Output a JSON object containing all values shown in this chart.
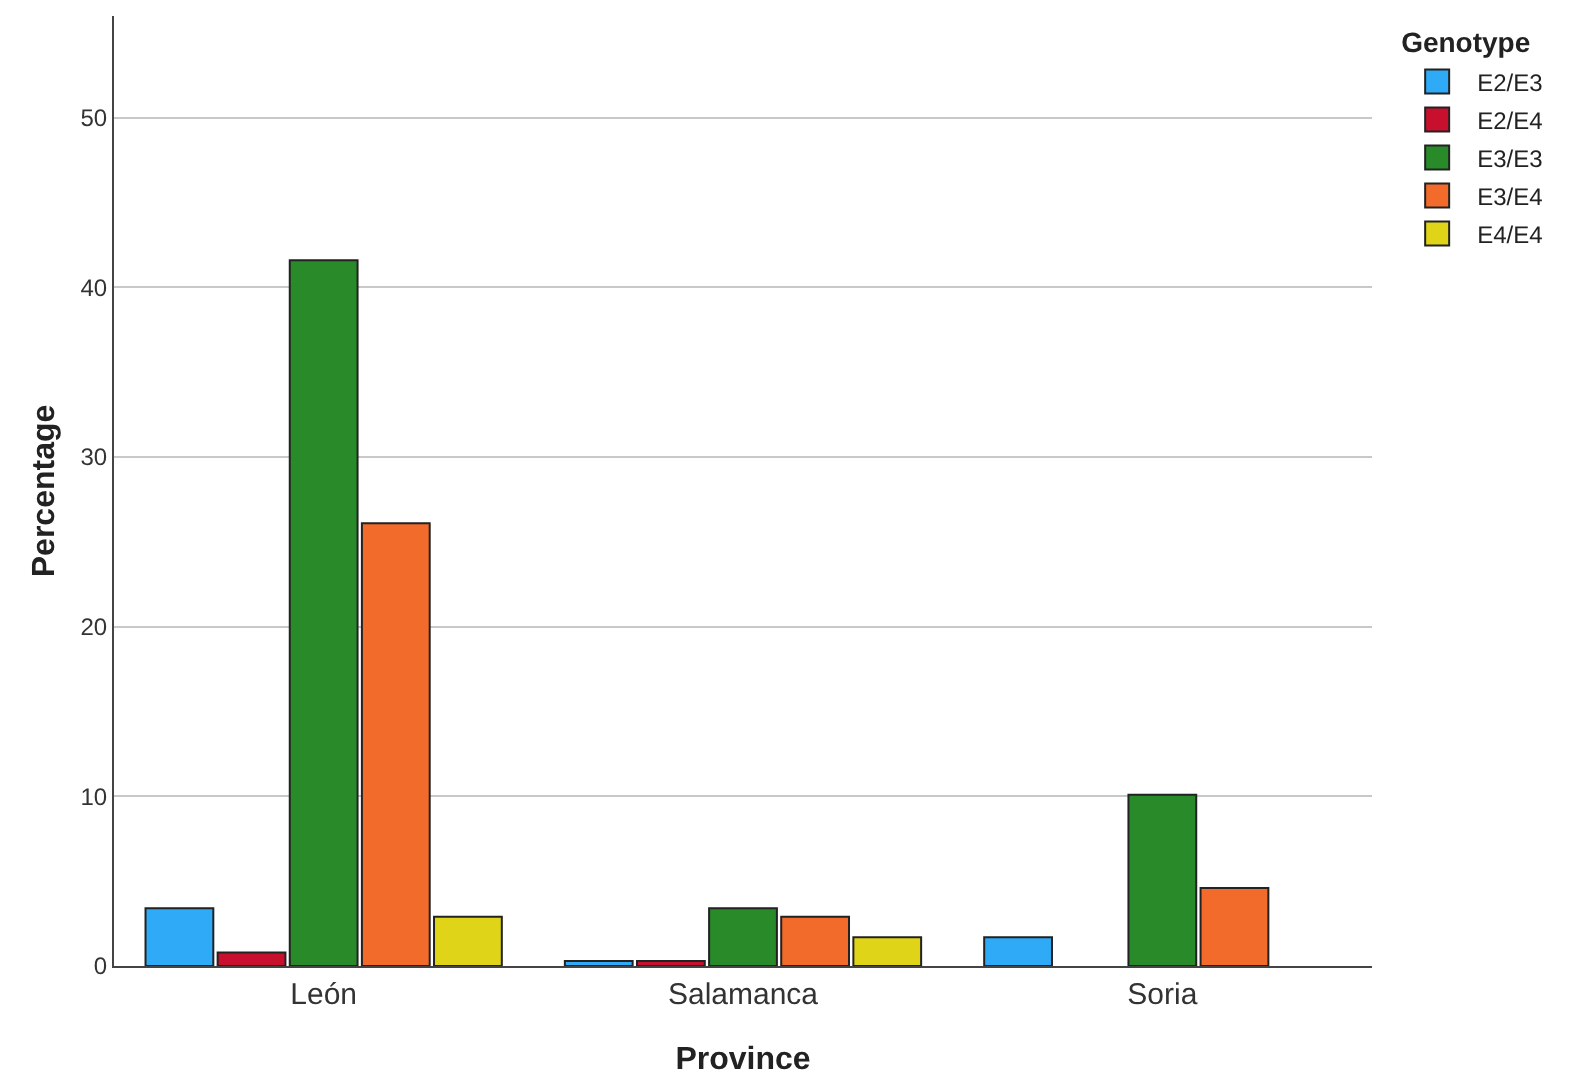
{
  "chart_data": {
    "type": "bar",
    "xlabel": "Province",
    "ylabel": "Percentage",
    "legend_title": "Genotype",
    "categories": [
      "León",
      "Salamanca",
      "Soria"
    ],
    "series": [
      {
        "name": "E2/E3",
        "color": "#2eaaf7",
        "values": [
          3.4,
          0.3,
          1.7
        ]
      },
      {
        "name": "E2/E4",
        "color": "#c8102e",
        "values": [
          0.8,
          0.3,
          null
        ]
      },
      {
        "name": "E3/E3",
        "color": "#288a28",
        "values": [
          41.6,
          3.4,
          10.1
        ]
      },
      {
        "name": "E3/E4",
        "color": "#f26b2a",
        "values": [
          26.1,
          2.9,
          4.6
        ]
      },
      {
        "name": "E4/E4",
        "color": "#e0d418",
        "values": [
          2.9,
          1.7,
          null
        ]
      }
    ],
    "ylim": [
      0,
      56
    ],
    "yticks": [
      0,
      10,
      20,
      30,
      40,
      50
    ],
    "grid": "y",
    "legend": "top right"
  }
}
